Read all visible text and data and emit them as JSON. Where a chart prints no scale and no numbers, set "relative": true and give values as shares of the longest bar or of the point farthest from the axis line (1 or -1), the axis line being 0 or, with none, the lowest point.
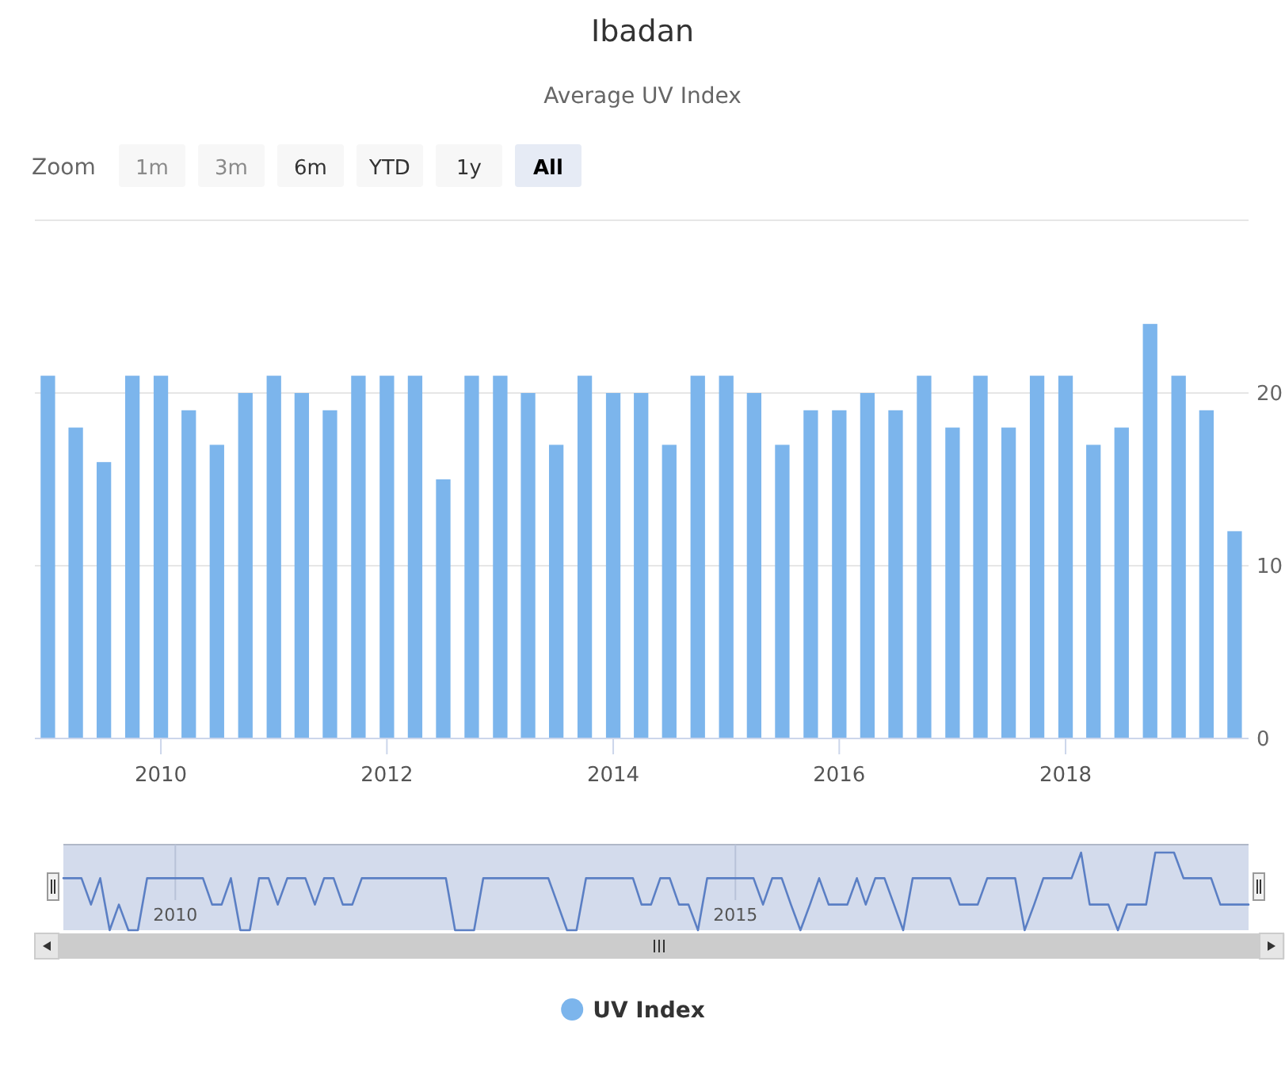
{
  "chart_data": [
    {
      "type": "bar",
      "title": "Ibadan",
      "subtitle": "Average UV Index",
      "annotations": [
        "Zoom",
        "1m",
        "3m",
        "6m",
        "YTD",
        "1y",
        "All"
      ],
      "x": [
        "2009-01",
        "2009-04",
        "2009-07",
        "2009-10",
        "2010-01",
        "2010-04",
        "2010-07",
        "2010-10",
        "2011-01",
        "2011-04",
        "2011-07",
        "2011-10",
        "2012-01",
        "2012-04",
        "2012-07",
        "2012-10",
        "2013-01",
        "2013-04",
        "2013-07",
        "2013-10",
        "2014-01",
        "2014-04",
        "2014-07",
        "2014-10",
        "2015-01",
        "2015-04",
        "2015-07",
        "2015-10",
        "2016-01",
        "2016-04",
        "2016-07",
        "2016-10",
        "2017-01",
        "2017-04",
        "2017-07",
        "2017-10",
        "2018-01",
        "2018-04",
        "2018-07",
        "2018-10",
        "2019-01",
        "2019-04",
        "2019-07"
      ],
      "series": [
        {
          "name": "UV Index",
          "color": "#7cb5ec",
          "values": [
            21,
            18,
            16,
            21,
            21,
            19,
            17,
            20,
            21,
            20,
            19,
            21,
            21,
            21,
            15,
            21,
            21,
            20,
            17,
            21,
            20,
            20,
            17,
            21,
            21,
            20,
            17,
            19,
            19,
            20,
            19,
            21,
            18,
            21,
            18,
            21,
            21,
            17,
            18,
            24,
            21,
            19,
            12
          ]
        }
      ],
      "xlim": [
        "2008-11-20",
        "2019-08-15"
      ],
      "xticks": [
        "2010",
        "2012",
        "2014",
        "2016",
        "2018"
      ],
      "ylim": [
        0,
        30
      ],
      "yticks": [
        0,
        10,
        20,
        {
          "value": 30,
          "label": null
        }
      ],
      "grid": "y",
      "legend": "bottom"
    },
    {
      "type": "line",
      "relative": true,
      "tick_labels": "x",
      "grid": "x",
      "x": [
        "2009-01",
        "2009-02",
        "2009-03",
        "2009-04",
        "2009-05",
        "2009-06",
        "2009-07",
        "2009-08",
        "2009-09",
        "2009-10",
        "2009-11",
        "2009-12",
        "2010-01",
        "2010-02",
        "2010-03",
        "2010-04",
        "2010-05",
        "2010-06",
        "2010-07",
        "2010-08",
        "2010-09",
        "2010-10",
        "2010-11",
        "2010-12",
        "2011-01",
        "2011-02",
        "2011-03",
        "2011-04",
        "2011-05",
        "2011-06",
        "2011-07",
        "2011-08",
        "2011-09",
        "2011-10",
        "2011-11",
        "2011-12",
        "2012-01",
        "2012-02",
        "2012-03",
        "2012-04",
        "2012-05",
        "2012-06",
        "2012-07",
        "2012-08",
        "2012-09",
        "2012-10",
        "2012-11",
        "2012-12",
        "2013-01",
        "2013-02",
        "2013-03",
        "2013-04",
        "2013-05",
        "2013-06",
        "2013-07",
        "2013-08",
        "2013-09",
        "2013-10",
        "2013-11",
        "2013-12",
        "2014-01",
        "2014-02",
        "2014-03",
        "2014-04",
        "2014-05",
        "2014-06",
        "2014-07",
        "2014-08",
        "2014-09",
        "2014-10",
        "2014-11",
        "2014-12",
        "2015-01",
        "2015-02",
        "2015-03",
        "2015-04",
        "2015-05",
        "2015-06",
        "2015-07",
        "2015-08",
        "2015-09",
        "2015-10",
        "2015-11",
        "2015-12",
        "2016-01",
        "2016-02",
        "2016-03",
        "2016-04",
        "2016-05",
        "2016-06",
        "2016-07",
        "2016-08",
        "2016-09",
        "2016-10",
        "2016-11",
        "2016-12",
        "2017-01",
        "2017-02",
        "2017-03",
        "2017-04",
        "2017-05",
        "2017-06",
        "2017-07",
        "2017-08",
        "2017-09",
        "2017-10",
        "2017-11",
        "2017-12",
        "2018-01",
        "2018-02",
        "2018-03",
        "2018-04",
        "2018-05",
        "2018-06",
        "2018-07",
        "2018-08",
        "2018-09",
        "2018-10",
        "2018-11",
        "2018-12",
        "2019-01",
        "2019-02",
        "2019-03",
        "2019-04",
        "2019-05",
        "2019-06",
        "2019-07",
        "2019-08"
      ],
      "series": [
        {
          "color": "#5b7fc4",
          "values": [
            0.67,
            0.67,
            0.67,
            0.33,
            0.67,
            0,
            0.33,
            0,
            0,
            0.67,
            0.67,
            0.67,
            0.67,
            0.67,
            0.67,
            0.67,
            0.33,
            0.33,
            0.67,
            0,
            0,
            0.67,
            0.67,
            0.33,
            0.67,
            0.67,
            0.67,
            0.33,
            0.67,
            0.67,
            0.33,
            0.33,
            0.67,
            0.67,
            0.67,
            0.67,
            0.67,
            0.67,
            0.67,
            0.67,
            0.67,
            0.67,
            0,
            0,
            0,
            0.67,
            0.67,
            0.67,
            0.67,
            0.67,
            0.67,
            0.67,
            0.67,
            0.33,
            0,
            0,
            0.67,
            0.67,
            0.67,
            0.67,
            0.67,
            0.67,
            0.33,
            0.33,
            0.67,
            0.67,
            0.33,
            0.33,
            0,
            0.67,
            0.67,
            0.67,
            0.67,
            0.67,
            0.67,
            0.33,
            0.67,
            0.67,
            0.33,
            0,
            0.33,
            0.67,
            0.33,
            0.33,
            0.33,
            0.67,
            0.33,
            0.67,
            0.67,
            0.33,
            0,
            0.67,
            0.67,
            0.67,
            0.67,
            0.67,
            0.33,
            0.33,
            0.33,
            0.67,
            0.67,
            0.67,
            0.67,
            0,
            0.33,
            0.67,
            0.67,
            0.67,
            0.67,
            1,
            0.33,
            0.33,
            0.33,
            0,
            0.33,
            0.33,
            0.33,
            1,
            1,
            1,
            0.67,
            0.67,
            0.67,
            0.67,
            0.33,
            0.33,
            0.33,
            0.33
          ]
        }
      ],
      "xlim": [
        "2009-01",
        "2019-08"
      ],
      "xticks": [
        "2010",
        "2015"
      ]
    }
  ]
}
